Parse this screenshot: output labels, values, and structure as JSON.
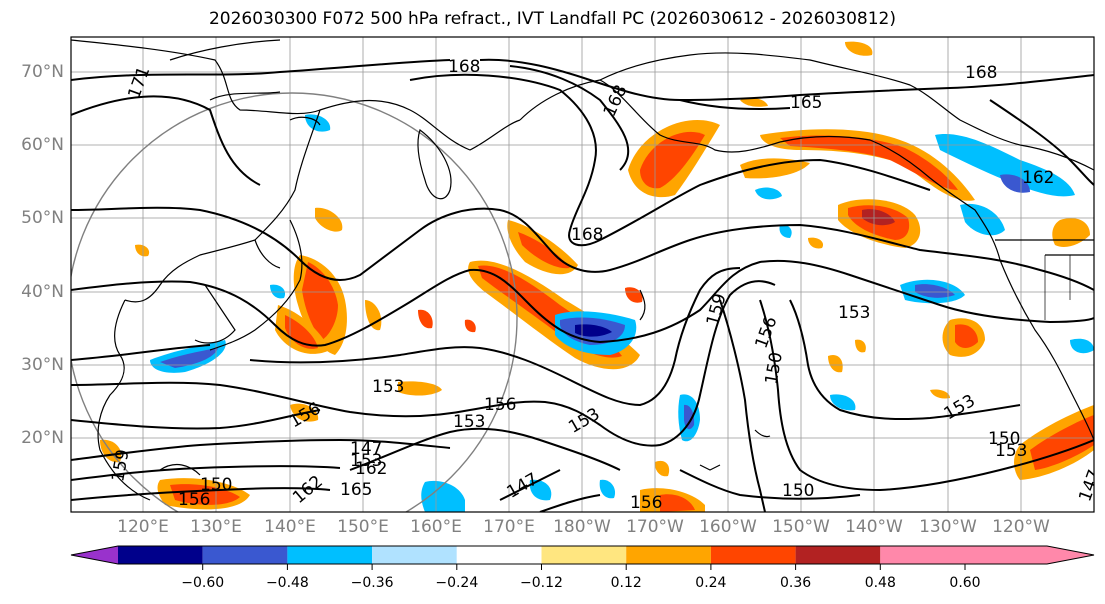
{
  "title": "2026030300 F072 500 hPa refract., IVT Landfall PC (2026030612 - 2026030812)",
  "lat_labels": [
    "70°N",
    "60°N",
    "50°N",
    "40°N",
    "30°N",
    "20°N"
  ],
  "lon_labels": [
    "120°E",
    "130°E",
    "140°E",
    "150°E",
    "160°E",
    "170°E",
    "180°W",
    "170°W",
    "160°W",
    "150°W",
    "140°W",
    "130°W",
    "120°W"
  ],
  "contour_labels": [
    "171",
    "168",
    "168",
    "168",
    "168",
    "165",
    "162",
    "159",
    "156",
    "153",
    "150",
    "156",
    "153",
    "153",
    "153",
    "156",
    "153",
    "147",
    "162",
    "147",
    "150",
    "156",
    "156",
    "150",
    "153",
    "150",
    "153",
    "147",
    "159",
    "162",
    "165"
  ],
  "colorbar": {
    "tick_labels": [
      "−0.60",
      "−0.48",
      "−0.36",
      "−0.24",
      "−0.12",
      "0.12",
      "0.24",
      "0.36",
      "0.48",
      "0.60"
    ],
    "colors": [
      "#9932cc",
      "#00008b",
      "#3a58d0",
      "#00bfff",
      "#b0e2ff",
      "#ffffff",
      "#ffe680",
      "#ffa500",
      "#ff4500",
      "#b22222",
      "#ff88aa"
    ]
  }
}
